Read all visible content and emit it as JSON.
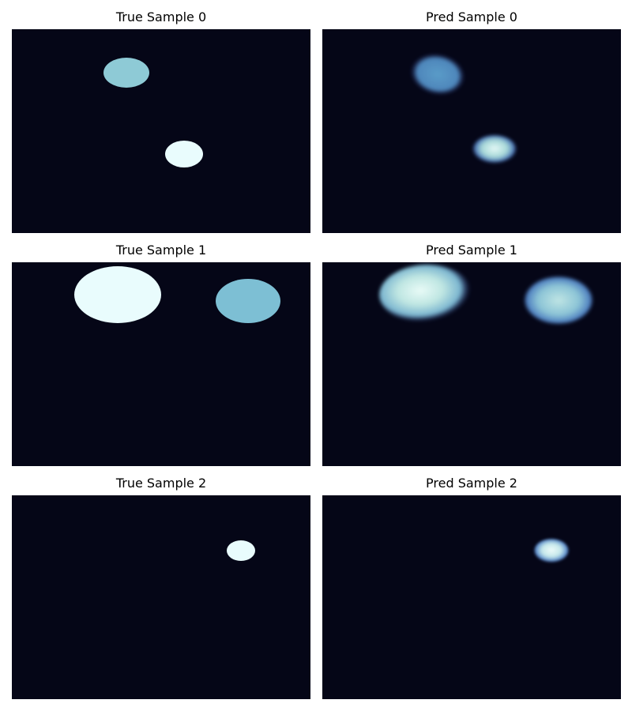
{
  "colors": {
    "background": "#050617",
    "true_light": "#e9fcfd",
    "true_mid": "#8ecad6",
    "true_blue": "#7dbfd4",
    "pred_blue": "#5a9cc8",
    "pred_light": "#d7f2f4"
  },
  "rows": [
    {
      "true_title": "True Sample 0",
      "pred_title": "Pred Sample 0"
    },
    {
      "true_title": "True Sample 1",
      "pred_title": "Pred Sample 1"
    },
    {
      "true_title": "True Sample 2",
      "pred_title": "Pred Sample 2"
    }
  ]
}
